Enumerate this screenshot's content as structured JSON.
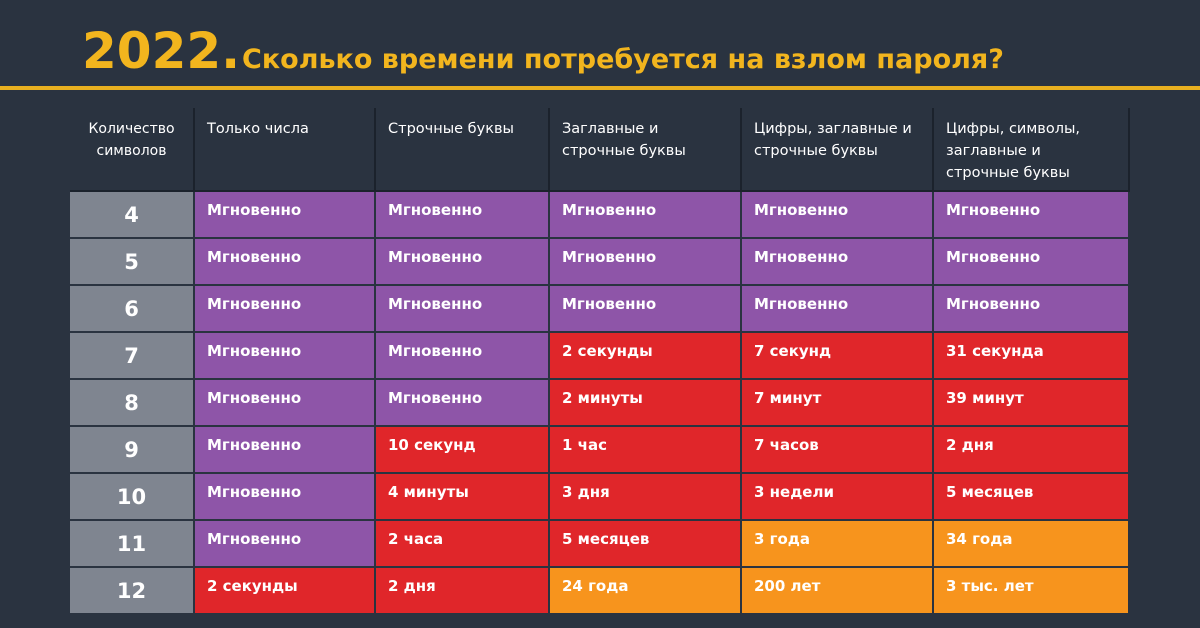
{
  "header": {
    "year": "2022.",
    "title": "Сколько времени потребуется на взлом пароля?"
  },
  "table": {
    "columns": [
      "Количество символов",
      "Только числа",
      "Строчные буквы",
      "Заглавные и строчные буквы",
      "Цифры, заглавные и строчные буквы",
      "Цифры, символы, заглавные и строчные буквы"
    ],
    "rows": [
      {
        "length": "4",
        "cells": [
          "Мгновенно",
          "Мгновенно",
          "Мгновенно",
          "Мгновенно",
          "Мгновенно"
        ],
        "colors": [
          "#8e55a8",
          "#8e55a8",
          "#8e55a8",
          "#8e55a8",
          "#8e55a8"
        ]
      },
      {
        "length": "5",
        "cells": [
          "Мгновенно",
          "Мгновенно",
          "Мгновенно",
          "Мгновенно",
          "Мгновенно"
        ],
        "colors": [
          "#8e55a8",
          "#8e55a8",
          "#8e55a8",
          "#8e55a8",
          "#8e55a8"
        ]
      },
      {
        "length": "6",
        "cells": [
          "Мгновенно",
          "Мгновенно",
          "Мгновенно",
          "Мгновенно",
          "Мгновенно"
        ],
        "colors": [
          "#8e55a8",
          "#8e55a8",
          "#8e55a8",
          "#8e55a8",
          "#8e55a8"
        ]
      },
      {
        "length": "7",
        "cells": [
          "Мгновенно",
          "Мгновенно",
          "2 секунды",
          "7 секунд",
          "31 секунда"
        ],
        "colors": [
          "#8e55a8",
          "#8e55a8",
          "#e0262a",
          "#e0262a",
          "#e0262a"
        ]
      },
      {
        "length": "8",
        "cells": [
          "Мгновенно",
          "Мгновенно",
          "2 минуты",
          "7 минут",
          "39 минут"
        ],
        "colors": [
          "#8e55a8",
          "#8e55a8",
          "#e0262a",
          "#e0262a",
          "#e0262a"
        ]
      },
      {
        "length": "9",
        "cells": [
          "Мгновенно",
          "10 секунд",
          "1 час",
          "7 часов",
          "2 дня"
        ],
        "colors": [
          "#8e55a8",
          "#e0262a",
          "#e0262a",
          "#e0262a",
          "#e0262a"
        ]
      },
      {
        "length": "10",
        "cells": [
          "Мгновенно",
          "4 минуты",
          "3 дня",
          "3 недели",
          "5 месяцев"
        ],
        "colors": [
          "#8e55a8",
          "#e0262a",
          "#e0262a",
          "#e0262a",
          "#e0262a"
        ]
      },
      {
        "length": "11",
        "cells": [
          "Мгновенно",
          "2 часа",
          "5 месяцев",
          "3 года",
          "34 года"
        ],
        "colors": [
          "#8e55a8",
          "#e0262a",
          "#e0262a",
          "#f7941d",
          "#f7941d"
        ]
      },
      {
        "length": "12",
        "cells": [
          "2 секунды",
          "2 дня",
          "24 года",
          "200 лет",
          "3 тыс. лет"
        ],
        "colors": [
          "#e0262a",
          "#e0262a",
          "#f7941d",
          "#f7941d",
          "#f7941d"
        ]
      }
    ]
  }
}
